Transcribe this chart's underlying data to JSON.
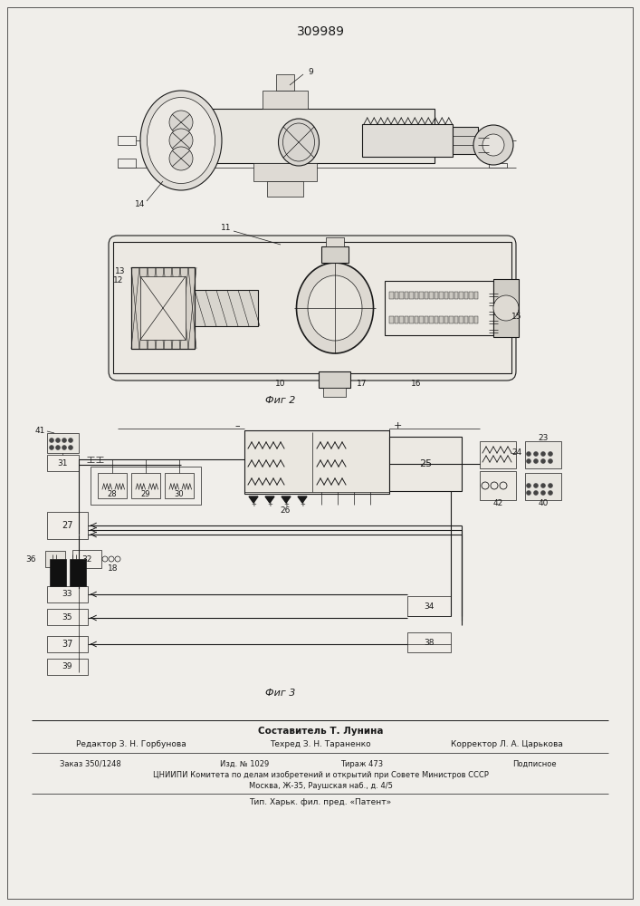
{
  "title": "309989",
  "fig2_label": "Фиг 2",
  "fig3_label": "Фиг 3",
  "footer_line1": "Составитель Т. Лунина",
  "footer_line2_left": "Редактор З. Н. Горбунова",
  "footer_line2_mid": "Техред З. Н. Тараненко",
  "footer_line2_right": "Корректор Л. А. Царькова",
  "footer_line3_left": "Заказ 350/1248",
  "footer_line3_mid1": "Изд. № 1029",
  "footer_line3_mid2": "Тираж 473",
  "footer_line3_right": "Подписное",
  "footer_line4": "ЦНИИПИ Комитета по делам изобретений и открытий при Совете Министров СССР",
  "footer_line5": "Москва, Ж-35, Раушская наб., д. 4/5",
  "footer_line6": "Тип. Харьк. фил. пред. «Патент»",
  "bg_color": "#f0eeea",
  "line_color": "#1a1a1a"
}
